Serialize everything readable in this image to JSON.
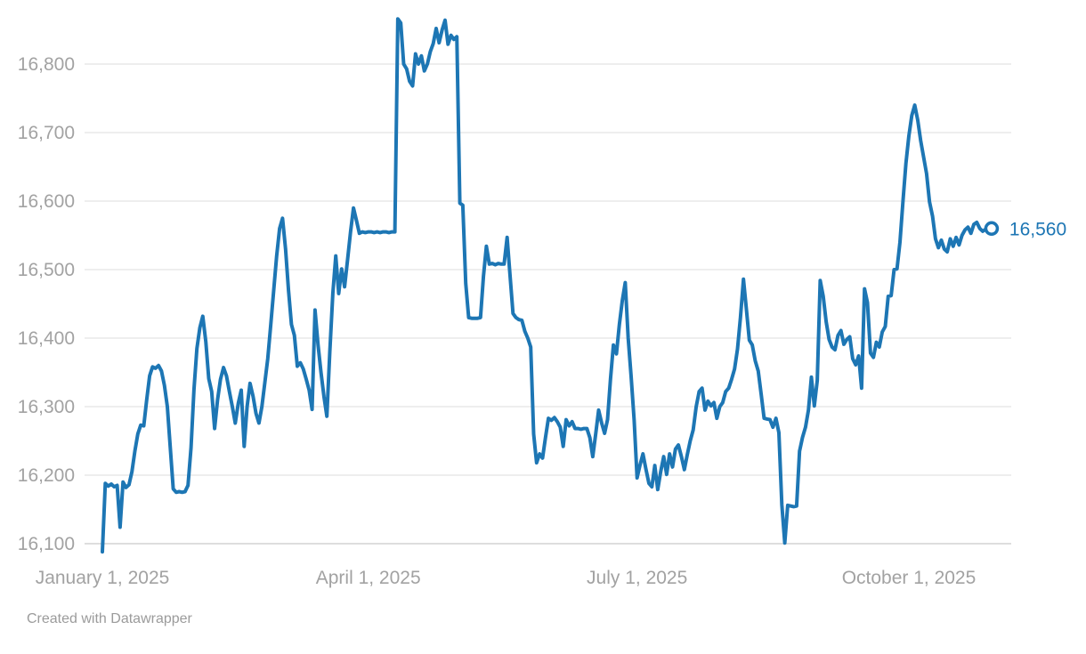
{
  "chart_data": {
    "type": "line",
    "title": "",
    "x_start_label": "January 1, 2025",
    "x_axis": {
      "ticks": [
        {
          "day": 0,
          "label": "January 1, 2025"
        },
        {
          "day": 90,
          "label": "April 1, 2025"
        },
        {
          "day": 181,
          "label": "July 1, 2025"
        },
        {
          "day": 273,
          "label": "October 1, 2025"
        }
      ]
    },
    "y_axis": {
      "ticks": [
        {
          "value": 16100,
          "label": "16,100"
        },
        {
          "value": 16200,
          "label": "16,200"
        },
        {
          "value": 16300,
          "label": "16,300"
        },
        {
          "value": 16400,
          "label": "16,400"
        },
        {
          "value": 16500,
          "label": "16,500"
        },
        {
          "value": 16600,
          "label": "16,600"
        },
        {
          "value": 16700,
          "label": "16,700"
        },
        {
          "value": 16800,
          "label": "16,800"
        }
      ],
      "ylim": [
        16060,
        16900
      ]
    },
    "series": [
      {
        "name": "index-value",
        "start_day": 0,
        "daily_values": [
          16088,
          16188,
          16184,
          16187,
          16183,
          16185,
          16124,
          16190,
          16182,
          16186,
          16205,
          16235,
          16260,
          16273,
          16272,
          16310,
          16345,
          16358,
          16356,
          16360,
          16352,
          16331,
          16300,
          16240,
          16180,
          16175,
          16176,
          16175,
          16176,
          16185,
          16240,
          16325,
          16385,
          16415,
          16432,
          16395,
          16341,
          16322,
          16268,
          16310,
          16340,
          16357,
          16345,
          16322,
          16300,
          16276,
          16305,
          16324,
          16242,
          16300,
          16334,
          16315,
          16290,
          16276,
          16300,
          16335,
          16370,
          16420,
          16470,
          16520,
          16560,
          16575,
          16530,
          16470,
          16420,
          16404,
          16359,
          16364,
          16355,
          16340,
          16324,
          16296,
          16441,
          16390,
          16350,
          16315,
          16286,
          16380,
          16465,
          16520,
          16465,
          16501,
          16475,
          16515,
          16555,
          16590,
          16572,
          16553,
          16555,
          16554,
          16555,
          16555,
          16554,
          16555,
          16554,
          16555,
          16555,
          16554,
          16555,
          16555,
          16866,
          16860,
          16800,
          16793,
          16775,
          16768,
          16815,
          16800,
          16812,
          16790,
          16800,
          16818,
          16830,
          16852,
          16831,
          16850,
          16864,
          16829,
          16842,
          16836,
          16840,
          16597,
          16594,
          16480,
          16430,
          16429,
          16429,
          16429,
          16430,
          16490,
          16534,
          16508,
          16509,
          16507,
          16509,
          16508,
          16508,
          16547,
          16491,
          16436,
          16430,
          16427,
          16426,
          16410,
          16400,
          16387,
          16260,
          16218,
          16231,
          16225,
          16255,
          16283,
          16280,
          16284,
          16278,
          16270,
          16242,
          16281,
          16272,
          16278,
          16268,
          16268,
          16267,
          16268,
          16268,
          16255,
          16227,
          16260,
          16295,
          16276,
          16261,
          16281,
          16340,
          16390,
          16377,
          16420,
          16455,
          16481,
          16400,
          16344,
          16280,
          16196,
          16215,
          16231,
          16209,
          16188,
          16183,
          16214,
          16179,
          16205,
          16227,
          16201,
          16231,
          16212,
          16238,
          16244,
          16227,
          16208,
          16230,
          16250,
          16266,
          16300,
          16322,
          16327,
          16295,
          16308,
          16301,
          16306,
          16283,
          16300,
          16306,
          16322,
          16327,
          16340,
          16355,
          16384,
          16430,
          16486,
          16442,
          16397,
          16390,
          16367,
          16352,
          16318,
          16283,
          16282,
          16281,
          16270,
          16283,
          16262,
          16157,
          16101,
          16156,
          16155,
          16154,
          16155,
          16235,
          16255,
          16270,
          16295,
          16343,
          16301,
          16338,
          16484,
          16461,
          16424,
          16398,
          16387,
          16383,
          16404,
          16411,
          16391,
          16398,
          16402,
          16370,
          16361,
          16374,
          16327,
          16472,
          16452,
          16378,
          16372,
          16394,
          16387,
          16409,
          16417,
          16461,
          16462,
          16500,
          16501,
          16540,
          16600,
          16655,
          16695,
          16725,
          16740,
          16718,
          16688,
          16664,
          16640,
          16599,
          16578,
          16545,
          16532,
          16543,
          16530,
          16526,
          16545,
          16534,
          16547,
          16536,
          16550,
          16558,
          16562,
          16553,
          16566,
          16569,
          16560,
          16556,
          16559,
          16557,
          16560
        ]
      }
    ],
    "end_marker": {
      "value": 16560,
      "label": "16,560"
    },
    "legend_position": "none",
    "grid": "horizontal",
    "colors": {
      "line": "#1d76b4",
      "end_label": "#1d76b4",
      "axis_label": "#a2a2a2",
      "gridline": "#e4e4e4",
      "baseline": "#c9c9c9",
      "marker_fill": "#ffffff"
    }
  },
  "footer": {
    "credit": "Created with Datawrapper"
  }
}
